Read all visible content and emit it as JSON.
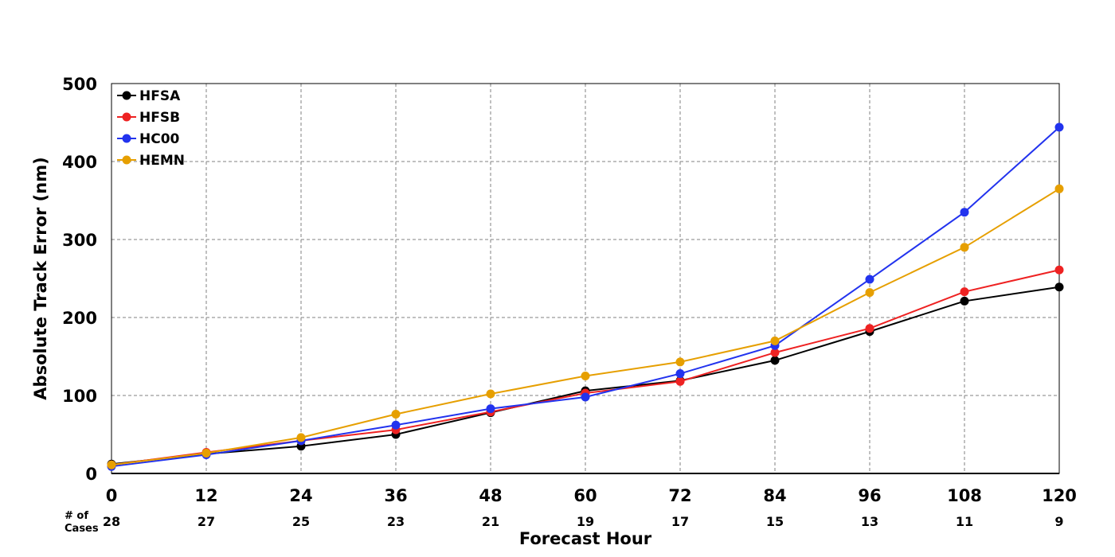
{
  "chart_data": {
    "type": "line",
    "xlabel": "Forecast Hour",
    "ylabel": "Absolute Track Error (nm)",
    "x": [
      0,
      12,
      24,
      36,
      48,
      60,
      72,
      84,
      96,
      108,
      120
    ],
    "x_tick_labels": [
      "0",
      "12",
      "24",
      "36",
      "48",
      "60",
      "72",
      "84",
      "96",
      "108",
      "120"
    ],
    "y_tick_labels": [
      "0",
      "100",
      "200",
      "300",
      "400",
      "500"
    ],
    "xlim": [
      0,
      120
    ],
    "ylim": [
      0,
      500
    ],
    "grid": true,
    "legend_position": "top-left",
    "cases_header": [
      "# of",
      "Cases"
    ],
    "cases": [
      "28",
      "27",
      "25",
      "23",
      "21",
      "19",
      "17",
      "15",
      "13",
      "11",
      "9"
    ],
    "series": [
      {
        "name": "HFSA",
        "color": "#000000",
        "values": [
          12,
          25,
          35,
          50,
          78,
          106,
          119,
          145,
          182,
          221,
          239
        ]
      },
      {
        "name": "HFSB",
        "color": "#ee2222",
        "values": [
          11,
          27,
          42,
          56,
          79,
          103,
          118,
          155,
          186,
          233,
          261
        ]
      },
      {
        "name": "HC00",
        "color": "#2233ee",
        "values": [
          9,
          24,
          42,
          62,
          83,
          98,
          128,
          164,
          249,
          335,
          444
        ]
      },
      {
        "name": "HEMN",
        "color": "#e69f00",
        "values": [
          11,
          26,
          46,
          76,
          102,
          125,
          143,
          170,
          232,
          290,
          365
        ]
      }
    ]
  }
}
